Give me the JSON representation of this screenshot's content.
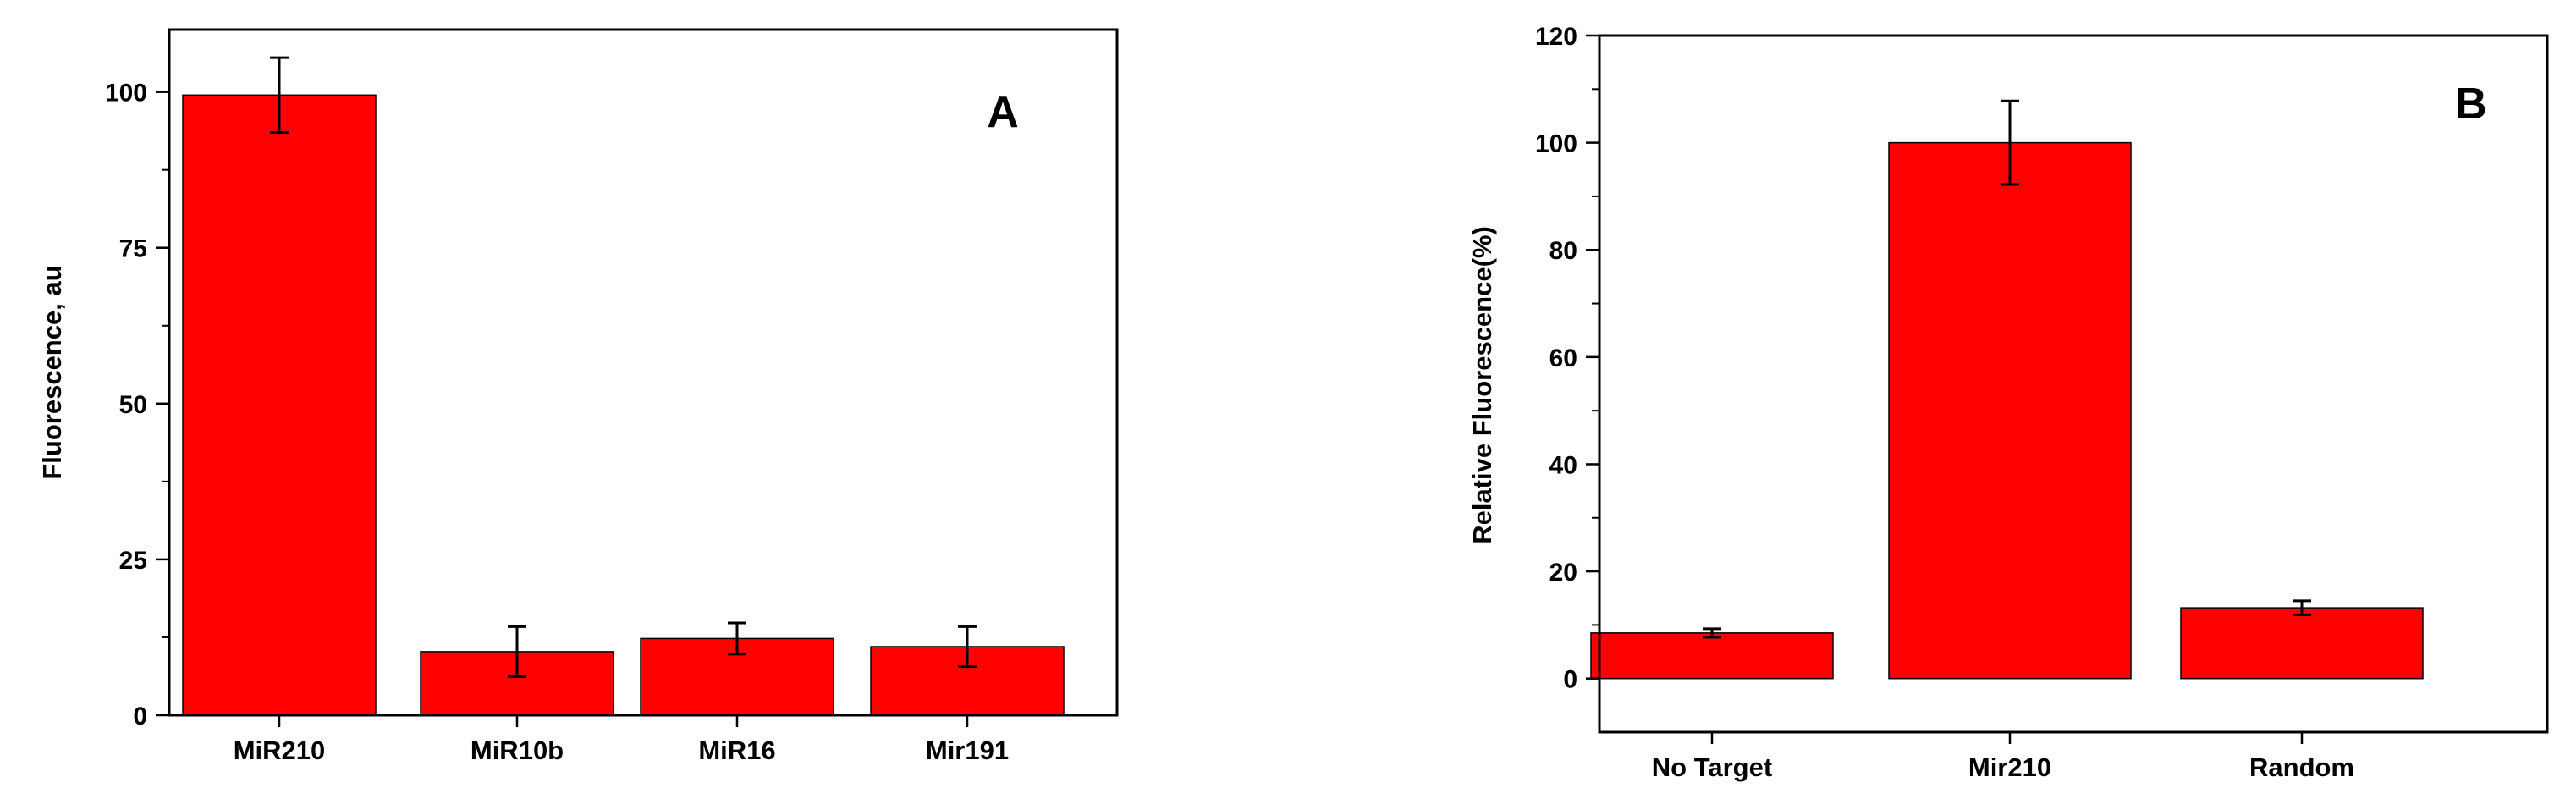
{
  "chart_data": [
    {
      "type": "bar",
      "panel_label": "A",
      "categories": [
        "MiR210",
        "MiR10b",
        "MiR16",
        "Mir191"
      ],
      "values": [
        99.5,
        10.2,
        12.3,
        11.0
      ],
      "errors": [
        6.0,
        4.0,
        2.5,
        3.2
      ],
      "xlabel": "",
      "ylabel": "Fluorescence, au",
      "ylim": [
        0,
        110
      ],
      "yticks": [
        0,
        25,
        50,
        75,
        100
      ],
      "bar_color": "#ff0000",
      "grid": false,
      "legend": "none"
    },
    {
      "type": "bar",
      "panel_label": "B",
      "categories": [
        "No Target",
        "Mir210",
        "Random"
      ],
      "values": [
        8.5,
        100.0,
        13.2
      ],
      "errors": [
        0.8,
        7.8,
        1.3
      ],
      "xlabel": "",
      "ylabel": "Relative Fluorescence(%)",
      "ylim": [
        -10,
        120
      ],
      "yticks": [
        0,
        20,
        40,
        60,
        80,
        100,
        120
      ],
      "bar_color": "#ff0000",
      "grid": false,
      "legend": "none"
    }
  ]
}
